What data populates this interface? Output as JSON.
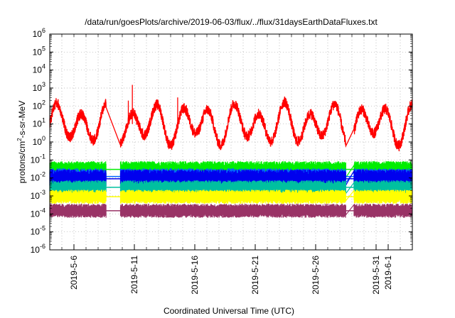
{
  "chart_data": {
    "type": "line",
    "title": "/data/run/goesPlots/archive/2019-06-03/flux/../flux/31daysEarthDataFluxes.txt",
    "xlabel": "Coordinated Universal Time (UTC)",
    "ylabel": {
      "pre": "protons/cm",
      "sup": "2",
      "post": "-s-sr-MeV"
    },
    "y_scale": "log",
    "ylim": [
      1e-06,
      1000000.0
    ],
    "xlim": [
      "2019-05-04",
      "2019-06-03"
    ],
    "grid": true,
    "y_ticks": [
      {
        "exp": -6,
        "base": "10",
        "sup": "-6"
      },
      {
        "exp": -5,
        "base": "10",
        "sup": "-5"
      },
      {
        "exp": -4,
        "base": "10",
        "sup": "-4"
      },
      {
        "exp": -3,
        "base": "10",
        "sup": "-3"
      },
      {
        "exp": -2,
        "base": "10",
        "sup": "-2"
      },
      {
        "exp": -1,
        "base": "10",
        "sup": "-1"
      },
      {
        "exp": 0,
        "base": "10",
        "sup": "0"
      },
      {
        "exp": 1,
        "base": "10",
        "sup": "1"
      },
      {
        "exp": 2,
        "base": "10",
        "sup": "2"
      },
      {
        "exp": 3,
        "base": "10",
        "sup": "3"
      },
      {
        "exp": 4,
        "base": "10",
        "sup": "4"
      },
      {
        "exp": 5,
        "base": "10",
        "sup": "5"
      },
      {
        "exp": 6,
        "base": "10",
        "sup": "6"
      }
    ],
    "x_ticks": [
      {
        "date": "2019-05-06",
        "label": "2019-5-6"
      },
      {
        "date": "2019-05-11",
        "label": "2019-5-11"
      },
      {
        "date": "2019-05-16",
        "label": "2019-5-16"
      },
      {
        "date": "2019-05-21",
        "label": "2019-5-21"
      },
      {
        "date": "2019-05-26",
        "label": "2019-5-26"
      },
      {
        "date": "2019-05-31",
        "label": "2019-5-31"
      },
      {
        "date": "2019-06-01",
        "label": "2019-6-1"
      }
    ],
    "data_gaps": [
      [
        "2019-05-08T16:00",
        "2019-05-09T20:00"
      ],
      [
        "2019-05-28T12:00",
        "2019-05-29T04:00"
      ]
    ],
    "series": [
      {
        "color": "#ff0000",
        "level": 10,
        "noise": 0.6,
        "oscillation": 1.1,
        "period_days": 2.1,
        "kind": "line",
        "spikes": [
          {
            "date": "2019-05-10T20:00",
            "value": 1500
          },
          {
            "date": "2019-05-10T12:00",
            "value": 200
          },
          {
            "date": "2019-05-14T14:00",
            "value": 300
          }
        ]
      },
      {
        "color": "#00ee00",
        "level": 0.03,
        "noise": 0.35,
        "kind": "band"
      },
      {
        "color": "#0066ff",
        "level": 0.012,
        "noise": 0.35,
        "kind": "band"
      },
      {
        "color": "#0000ee",
        "level": 0.009,
        "noise": 0.4,
        "kind": "band"
      },
      {
        "color": "#00c0a0",
        "level": 0.003,
        "noise": 0.3,
        "kind": "band"
      },
      {
        "color": "#ffff00",
        "level": 0.0009,
        "noise": 0.3,
        "kind": "band"
      },
      {
        "color": "#993366",
        "level": 0.00015,
        "noise": 0.3,
        "kind": "band"
      }
    ]
  }
}
